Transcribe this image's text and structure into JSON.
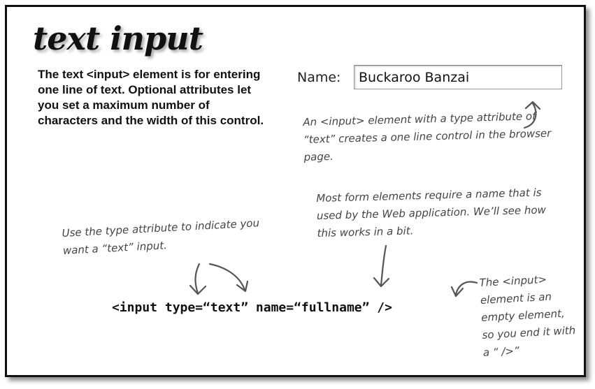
{
  "title": "text input",
  "intro": "The text <input> element is for entering one line of text. Optional attributes let you set a maximum number of characters and the width of this control.",
  "example_field": {
    "label": "Name:",
    "value": "Buckaroo Banzai"
  },
  "annotations": {
    "type_text": "An <input> element with a type attribute of “text” creates a one line control in the browser page.",
    "name_attr": "Most form elements require a name that is used by the Web application. We’ll see how this works in a bit.",
    "type_attr": "Use the type attribute to indicate you want a “text” input.",
    "empty_element": "The <input> element is an empty element, so you end it with a “ />”"
  },
  "code": "<input type=“text” name=“fullname” />"
}
